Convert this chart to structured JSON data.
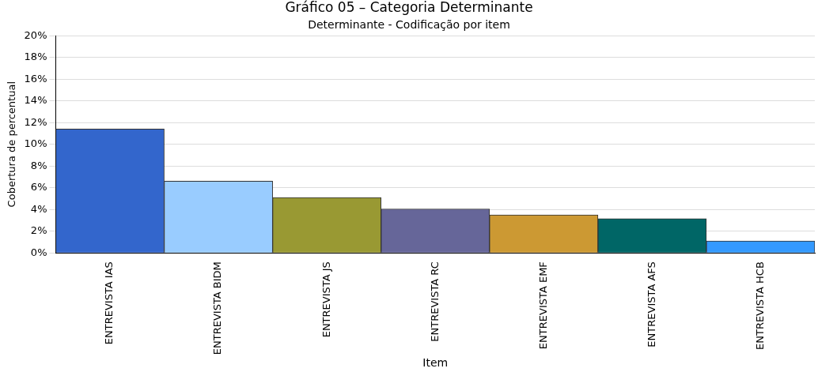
{
  "chart_data": {
    "type": "bar",
    "title": "Gráfico 05 – Categoria Determinante",
    "subtitle": "Determinante - Codificação por item",
    "xlabel": "Item",
    "ylabel": "Cobertura de percentual",
    "categories": [
      "ENTREVISTA IAS",
      "ENTREVISTA BIDM",
      "ENTREVISTA JS",
      "ENTREVISTA RC",
      "ENTREVISTA EMF",
      "ENTREVISTA AFS",
      "ENTREVISTA HCB"
    ],
    "values": [
      11.4,
      6.6,
      5.1,
      4.05,
      3.5,
      3.15,
      1.1
    ],
    "colors": [
      "#3366cc",
      "#99ccff",
      "#999933",
      "#666699",
      "#cc9933",
      "#006666",
      "#3399ff"
    ],
    "ylim": [
      0,
      20
    ],
    "yticks": [
      {
        "value": 0,
        "label": "0%"
      },
      {
        "value": 2,
        "label": "2%"
      },
      {
        "value": 4,
        "label": "4%"
      },
      {
        "value": 6,
        "label": "6%"
      },
      {
        "value": 8,
        "label": "8%"
      },
      {
        "value": 10,
        "label": "10%"
      },
      {
        "value": 12,
        "label": "12%"
      },
      {
        "value": 14,
        "label": "14%"
      },
      {
        "value": 16,
        "label": "16%"
      },
      {
        "value": 18,
        "label": "18%"
      },
      {
        "value": 20,
        "label": "20%"
      }
    ],
    "grid": "y",
    "legend": false
  }
}
